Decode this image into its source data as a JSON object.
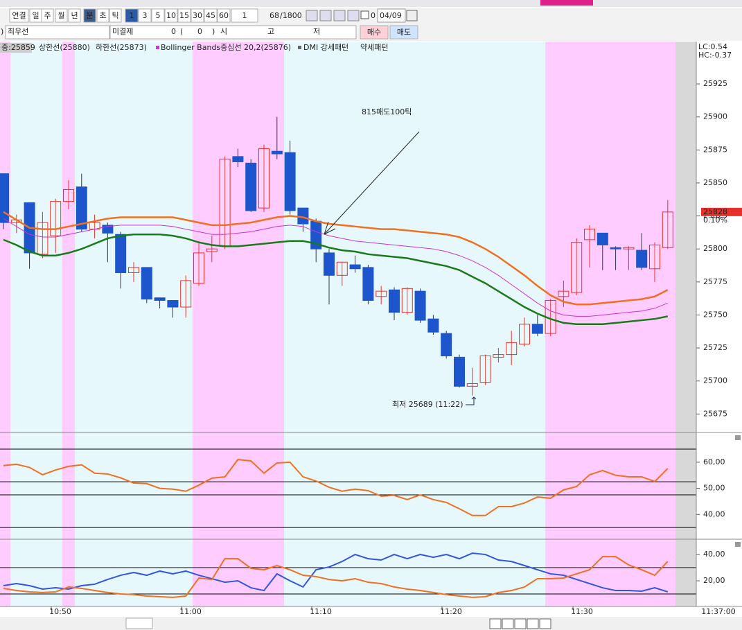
{
  "toolbar": {
    "periods": [
      "연결",
      "일",
      "주",
      "월",
      "년",
      "분",
      "초",
      "틱"
    ],
    "intervals": [
      "1",
      "3",
      "5",
      "10",
      "15",
      "30",
      "45",
      "60"
    ],
    "count": "1",
    "loaded": "68",
    "max": "/1800",
    "flag": "0",
    "date": "04/09"
  },
  "order_bar": {
    "paren": ")",
    "quote": "최우선",
    "oi_label": "미결제",
    "oi": "0",
    "open_paren": "(",
    "oi_change": "0",
    "close_paren": ")",
    "open": "시",
    "high": "고",
    "low": "저",
    "buy": "매수",
    "sell": "매도"
  },
  "chart_data": [
    {
      "type": "candlestick",
      "legend": [
        "중:25859",
        "상한선(25880)",
        "하한선(25873)",
        "Bollinger Bands중심선 20,2(25876)",
        "DMI 강세패턴",
        "약세패턴"
      ],
      "open": [
        25857,
        25820,
        25835,
        25796,
        25810,
        25836,
        25847,
        25815,
        25818,
        25811,
        25782,
        25786,
        25763,
        25761,
        25756,
        25774,
        25798,
        25802,
        25870,
        25865,
        25831,
        25874,
        25873,
        25831,
        25821,
        25797,
        25780,
        25788,
        25786,
        25764,
        25769,
        25752,
        25768,
        25747,
        25736,
        25718,
        25696,
        25699,
        25718,
        25720,
        25728,
        25743,
        25736,
        25764,
        25767,
        25807,
        25812,
        25801,
        25800,
        25799,
        25785,
        25801
      ],
      "high": [
        25857,
        25826,
        25835,
        25828,
        25838,
        25852,
        25857,
        25826,
        25820,
        25813,
        25790,
        25786,
        25763,
        25761,
        25780,
        25806,
        25810,
        25870,
        25876,
        25868,
        25879,
        25900,
        25882,
        25831,
        25823,
        25800,
        25790,
        25795,
        25788,
        25772,
        25771,
        25771,
        25770,
        25750,
        25738,
        25720,
        25710,
        25720,
        25725,
        25738,
        25748,
        25750,
        25762,
        25776,
        25808,
        25818,
        25812,
        25802,
        25802,
        25812,
        25805,
        25837
      ],
      "low": [
        25815,
        25812,
        25785,
        25793,
        25797,
        25830,
        25813,
        25808,
        25790,
        25770,
        25775,
        25759,
        25755,
        25748,
        25748,
        25772,
        25790,
        25800,
        25862,
        25828,
        25828,
        25868,
        25826,
        25813,
        25790,
        25758,
        25772,
        25782,
        25758,
        25758,
        25746,
        25750,
        25744,
        25735,
        25717,
        25695,
        25689,
        25697,
        25714,
        25712,
        25726,
        25734,
        25734,
        25756,
        25765,
        25786,
        25784,
        25784,
        25784,
        25784,
        25775,
        25800
      ],
      "close": [
        25820,
        25822,
        25797,
        25820,
        25836,
        25845,
        25815,
        25820,
        25812,
        25782,
        25786,
        25762,
        25761,
        25756,
        25776,
        25797,
        25800,
        25868,
        25866,
        25829,
        25876,
        25872,
        25829,
        25819,
        25800,
        25780,
        25790,
        25785,
        25761,
        25768,
        25752,
        25770,
        25746,
        25737,
        25719,
        25696,
        25698,
        25719,
        25720,
        25729,
        25743,
        25736,
        25761,
        25768,
        25805,
        25815,
        25803,
        25800,
        25801,
        25786,
        25803,
        25828
      ],
      "series": [
        {
          "color": "#f07020",
          "values": [
            25828,
            25822,
            25816,
            25815,
            25815,
            25817,
            25819,
            25821,
            25823,
            25824,
            25824,
            25824,
            25824,
            25824,
            25822,
            25820,
            25818,
            25818,
            25819,
            25820,
            25822,
            25824,
            25825,
            25824,
            25821,
            25819,
            25818,
            25817,
            25816,
            25815,
            25815,
            25814,
            25813,
            25812,
            25811,
            25809,
            25805,
            25800,
            25794,
            25787,
            25780,
            25772,
            25765,
            25760,
            25758,
            25758,
            25759,
            25760,
            25761,
            25762,
            25764,
            25769
          ]
        },
        {
          "color": "#cc33cc",
          "values": [
            25823,
            25817,
            25811,
            25809,
            25809,
            25811,
            25813,
            25815,
            25817,
            25818,
            25818,
            25818,
            25818,
            25817,
            25815,
            25813,
            25811,
            25811,
            25812,
            25813,
            25815,
            25817,
            25818,
            25817,
            25813,
            25810,
            25808,
            25806,
            25805,
            25804,
            25803,
            25802,
            25801,
            25800,
            25798,
            25795,
            25791,
            25786,
            25780,
            25773,
            25766,
            25759,
            25753,
            25750,
            25749,
            25749,
            25750,
            25751,
            25752,
            25753,
            25755,
            25759
          ]
        },
        {
          "color": "#1a7a1a",
          "values": [
            25807,
            25803,
            25798,
            25795,
            25795,
            25797,
            25800,
            25804,
            25808,
            25810,
            25811,
            25811,
            25811,
            25810,
            25808,
            25805,
            25803,
            25802,
            25802,
            25803,
            25804,
            25805,
            25806,
            25806,
            25804,
            25801,
            25799,
            25798,
            25796,
            25795,
            25794,
            25793,
            25791,
            25789,
            25787,
            25784,
            25779,
            25774,
            25768,
            25762,
            25756,
            25751,
            25747,
            25744,
            25743,
            25743,
            25743,
            25744,
            25745,
            25746,
            25747,
            25749
          ]
        }
      ],
      "up_color": "#e8302a",
      "down_color": "#1c55cc",
      "ylim": [
        25661,
        25956
      ],
      "yticks": [
        25675,
        25700,
        25725,
        25750,
        25775,
        25800,
        25825,
        25850,
        25875,
        25900,
        25925
      ],
      "annotation": "815매도100틱",
      "low_label": "최저 25689 (11:22)",
      "lc": "LC:0.54",
      "hc": "HC:-0.37",
      "last_price": 25828,
      "last_change": "0.10%"
    },
    {
      "type": "line",
      "series": [
        {
          "color": "#f07020",
          "values": [
            58.7,
            59.2,
            58,
            55.2,
            57,
            58.4,
            59,
            55.8,
            55.5,
            54,
            52,
            51.8,
            50,
            49.7,
            48.9,
            51.2,
            53.9,
            54.4,
            61,
            60.5,
            55.8,
            59.7,
            60,
            54.4,
            52.8,
            50.4,
            48.9,
            49.7,
            49.1,
            47,
            47.3,
            45.7,
            47.5,
            45.7,
            44.6,
            42.2,
            39.6,
            39.6,
            43,
            43,
            44.4,
            46.7,
            46.2,
            49.4,
            50.7,
            55.2,
            56.8,
            55,
            54.4,
            54.4,
            52.6,
            57.6
          ]
        }
      ],
      "ylim": [
        30.8,
        71.1
      ],
      "yticks": [
        {
          "value": 60,
          "label": "60,00"
        },
        {
          "value": 50,
          "label": "50,00"
        },
        {
          "value": 40,
          "label": "40,00"
        }
      ],
      "levels": [
        65,
        52.5,
        47.5,
        35
      ]
    },
    {
      "type": "line",
      "series": [
        {
          "color": "#3355dd",
          "values": [
            16.3,
            17.9,
            16.3,
            13.7,
            14.7,
            13.7,
            16.3,
            17.4,
            21,
            24.2,
            26.3,
            24.2,
            27.4,
            25.3,
            27.4,
            24.2,
            21.6,
            18.9,
            20,
            14.7,
            12.6,
            25.3,
            20,
            15.3,
            28.4,
            30.5,
            34.7,
            40,
            36.8,
            35.8,
            40,
            36.8,
            40,
            37.9,
            40,
            36.8,
            41,
            40,
            35.8,
            34.7,
            31.6,
            28.4,
            25.3,
            24.2,
            21,
            17.9,
            14.7,
            12.6,
            12.6,
            12.1,
            14.7,
            11.6
          ]
        },
        {
          "color": "#f07020",
          "values": [
            14.2,
            12.6,
            11.6,
            11.1,
            11.6,
            15.3,
            14.2,
            12.6,
            11.1,
            10,
            9.5,
            8.4,
            7.9,
            7.4,
            8.4,
            22.1,
            21,
            36.8,
            36.8,
            29.5,
            28.4,
            31.6,
            28.4,
            24.2,
            23.2,
            21,
            20,
            21.6,
            18.9,
            17.9,
            15.3,
            13.7,
            12.6,
            11.1,
            9.5,
            8.4,
            7.4,
            7.9,
            11.1,
            12.6,
            15.3,
            21.6,
            21.6,
            22.1,
            25.3,
            28.4,
            38.4,
            38.4,
            32.1,
            28.4,
            24.2,
            34.7
          ]
        }
      ],
      "ylim": [
        0.5,
        51.1
      ],
      "yticks": [
        {
          "value": 40,
          "label": "40,00"
        },
        {
          "value": 20,
          "label": "20,00"
        }
      ],
      "levels": [
        30,
        10
      ]
    }
  ],
  "time_axis": [
    "10:50",
    "11:00",
    "11:10",
    "11:20",
    "11:30"
  ],
  "cursor_time": "11:37:00"
}
